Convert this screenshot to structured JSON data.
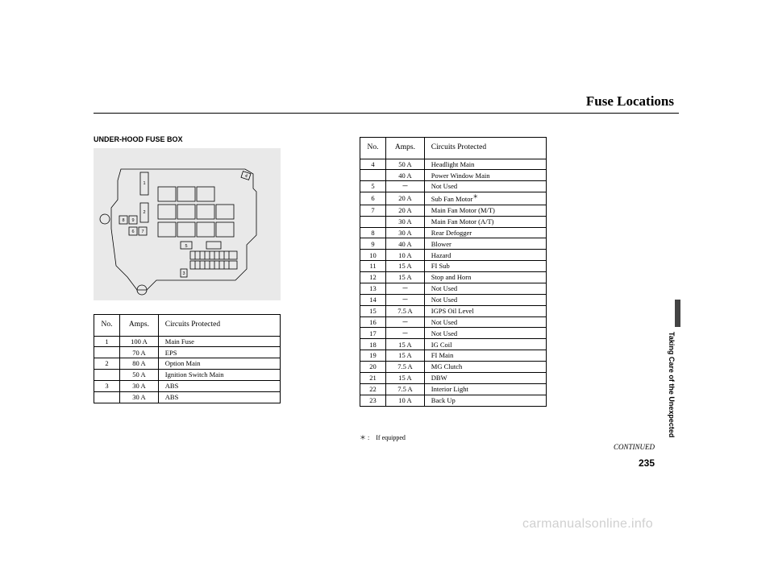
{
  "page_title": "Fuse Locations",
  "section_heading": "UNDER-HOOD FUSE BOX",
  "table1": {
    "headers": [
      "No.",
      "Amps.",
      "Circuits Protected"
    ],
    "rows": [
      {
        "no": "1",
        "amps": "100 A",
        "circuit": "Main Fuse"
      },
      {
        "no": "",
        "amps": "70 A",
        "circuit": "EPS"
      },
      {
        "no": "2",
        "amps": "80 A",
        "circuit": "Option Main"
      },
      {
        "no": "",
        "amps": "50 A",
        "circuit": "Ignition Switch Main"
      },
      {
        "no": "3",
        "amps": "30 A",
        "circuit": "ABS"
      },
      {
        "no": "",
        "amps": "30 A",
        "circuit": "ABS"
      }
    ]
  },
  "table2": {
    "headers": [
      "No.",
      "Amps.",
      "Circuits Protected"
    ],
    "rows": [
      {
        "no": "4",
        "amps": "50 A",
        "circuit": "Headlight Main"
      },
      {
        "no": "",
        "amps": "40 A",
        "circuit": "Power Window Main"
      },
      {
        "no": "5",
        "amps": "－",
        "circuit": "Not Used"
      },
      {
        "no": "6",
        "amps": "20 A",
        "circuit": "Sub Fan Motor",
        "note": "＊"
      },
      {
        "no": "7",
        "amps": "20 A",
        "circuit": "Main Fan Motor (M/T)"
      },
      {
        "no": "",
        "amps": "30 A",
        "circuit": "Main Fan Motor (A/T)"
      },
      {
        "no": "8",
        "amps": "30 A",
        "circuit": "Rear Defogger"
      },
      {
        "no": "9",
        "amps": "40 A",
        "circuit": "Blower"
      },
      {
        "no": "10",
        "amps": "10 A",
        "circuit": "Hazard"
      },
      {
        "no": "11",
        "amps": "15 A",
        "circuit": "FI Sub"
      },
      {
        "no": "12",
        "amps": "15 A",
        "circuit": "Stop and Horn"
      },
      {
        "no": "13",
        "amps": "－",
        "circuit": "Not Used"
      },
      {
        "no": "14",
        "amps": "－",
        "circuit": "Not Used"
      },
      {
        "no": "15",
        "amps": "7.5 A",
        "circuit": "IGPS Oil Level"
      },
      {
        "no": "16",
        "amps": "－",
        "circuit": "Not Used"
      },
      {
        "no": "17",
        "amps": "－",
        "circuit": "Not Used"
      },
      {
        "no": "18",
        "amps": "15 A",
        "circuit": "IG Coil"
      },
      {
        "no": "19",
        "amps": "15 A",
        "circuit": "FI Main"
      },
      {
        "no": "20",
        "amps": "7.5 A",
        "circuit": "MG Clutch"
      },
      {
        "no": "21",
        "amps": "15 A",
        "circuit": "DBW"
      },
      {
        "no": "22",
        "amps": "7.5 A",
        "circuit": "Interior Light"
      },
      {
        "no": "23",
        "amps": "10 A",
        "circuit": "Back Up"
      }
    ]
  },
  "footnote_mark": "＊ :",
  "footnote_text": "If equipped",
  "sidebar_text": "Taking Care of the Unexpected",
  "continued": "CONTINUED",
  "page_number": "235",
  "watermark": "carmanualsonline.info",
  "diagram_labels": [
    "1",
    "2",
    "3",
    "4",
    "5",
    "6",
    "7",
    "8",
    "9"
  ],
  "colors": {
    "diagram_bg": "#e9e9e9",
    "line": "#000000",
    "watermark": "#d0d0d0",
    "tab": "#444444"
  }
}
